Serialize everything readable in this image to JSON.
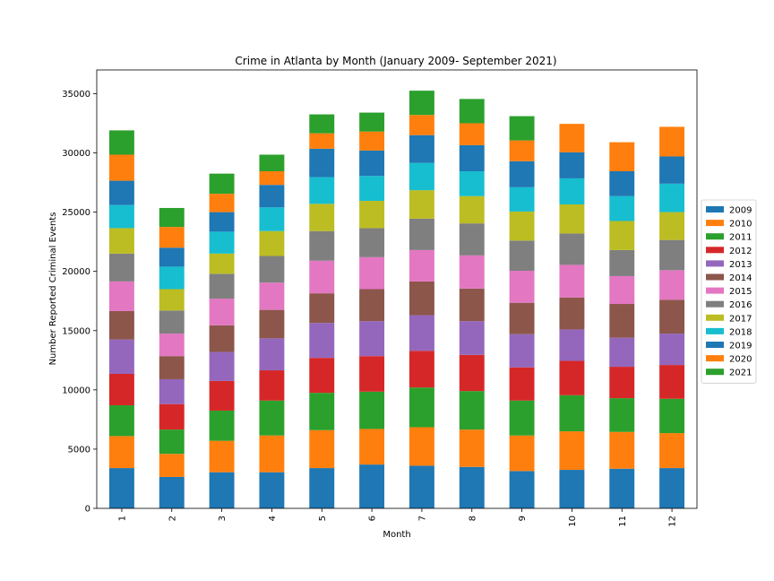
{
  "chart_data": {
    "type": "bar",
    "stacked": true,
    "title": "Crime in Atlanta by Month (January 2009- September 2021)",
    "xlabel": "Month",
    "ylabel": "Number Reported Criminal Events",
    "categories": [
      "1",
      "2",
      "3",
      "4",
      "5",
      "6",
      "7",
      "8",
      "9",
      "10",
      "11",
      "12"
    ],
    "ylim": [
      0,
      37000
    ],
    "yticks": [
      0,
      5000,
      10000,
      15000,
      20000,
      25000,
      30000,
      35000
    ],
    "grid": false,
    "legend_position": "right",
    "series": [
      {
        "name": "2009",
        "color": "#1f77b4",
        "values": [
          3400,
          2650,
          3050,
          3050,
          3400,
          3700,
          3600,
          3500,
          3150,
          3250,
          3350,
          3400
        ]
      },
      {
        "name": "2010",
        "color": "#ff7f0e",
        "values": [
          2700,
          1950,
          2650,
          3100,
          3200,
          3000,
          3250,
          3150,
          3000,
          3250,
          3100,
          2950
        ]
      },
      {
        "name": "2011",
        "color": "#2ca02c",
        "values": [
          2600,
          2050,
          2550,
          2950,
          3150,
          3150,
          3350,
          3250,
          2950,
          3050,
          2850,
          2900
        ]
      },
      {
        "name": "2012",
        "color": "#d62728",
        "values": [
          2650,
          2150,
          2500,
          2550,
          2950,
          3000,
          3100,
          3050,
          2800,
          2900,
          2650,
          2850
        ]
      },
      {
        "name": "2013",
        "color": "#9467bd",
        "values": [
          2900,
          2100,
          2450,
          2700,
          2950,
          2950,
          3000,
          2850,
          2800,
          2650,
          2450,
          2650
        ]
      },
      {
        "name": "2014",
        "color": "#8c564b",
        "values": [
          2400,
          1950,
          2250,
          2400,
          2500,
          2700,
          2850,
          2750,
          2650,
          2700,
          2850,
          2850
        ]
      },
      {
        "name": "2015",
        "color": "#e377c2",
        "values": [
          2500,
          1900,
          2250,
          2300,
          2750,
          2700,
          2650,
          2800,
          2700,
          2750,
          2350,
          2500
        ]
      },
      {
        "name": "2016",
        "color": "#7f7f7f",
        "values": [
          2350,
          1950,
          2100,
          2250,
          2500,
          2450,
          2650,
          2700,
          2550,
          2650,
          2200,
          2550
        ]
      },
      {
        "name": "2017",
        "color": "#bcbd22",
        "values": [
          2150,
          1800,
          1700,
          2100,
          2300,
          2300,
          2400,
          2300,
          2450,
          2450,
          2450,
          2350
        ]
      },
      {
        "name": "2018",
        "color": "#17becf",
        "values": [
          1950,
          1900,
          1850,
          2000,
          2250,
          2100,
          2300,
          2100,
          2050,
          2200,
          2100,
          2400
        ]
      },
      {
        "name": "2019",
        "color": "#1f77b4",
        "values": [
          2050,
          1600,
          1650,
          1900,
          2400,
          2150,
          2350,
          2200,
          2200,
          2200,
          2100,
          2300
        ]
      },
      {
        "name": "2020",
        "color": "#ff7f0e",
        "values": [
          2200,
          1750,
          1550,
          1150,
          1300,
          1600,
          1700,
          1850,
          1750,
          2400,
          2450,
          2500
        ]
      },
      {
        "name": "2021",
        "color": "#2ca02c",
        "values": [
          2050,
          1600,
          1700,
          1400,
          1600,
          1600,
          2050,
          2050,
          2050,
          0,
          0,
          0
        ]
      }
    ]
  }
}
